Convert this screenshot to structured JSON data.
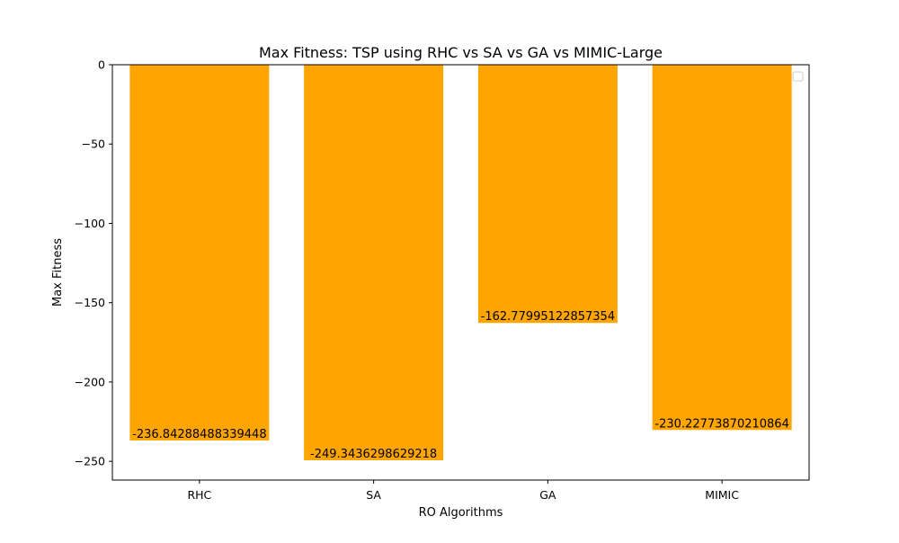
{
  "chart_data": {
    "type": "bar",
    "title": "Max Fitness: TSP using RHC vs SA vs GA vs MIMIC-Large",
    "xlabel": "RO Algorithms",
    "ylabel": "Max Fitness",
    "categories": [
      "RHC",
      "SA",
      "GA",
      "MIMIC"
    ],
    "values": [
      -236.84288488339448,
      -249.3436298629218,
      -162.77995122857354,
      -230.22773870210864
    ],
    "value_labels": [
      "-236.84288488339448",
      "-249.3436298629218",
      "-162.77995122857354",
      "-230.22773870210864"
    ],
    "ylim": [
      -261.81581035613726,
      0
    ],
    "yticks": [
      0,
      -50,
      -100,
      -150,
      -200,
      -250
    ],
    "ytick_labels": [
      "0",
      "−50",
      "−100",
      "−150",
      "−200",
      "−250"
    ],
    "bar_color": "#ffa500",
    "grid": false,
    "legend": {
      "placement": "top-right",
      "entries": []
    }
  }
}
